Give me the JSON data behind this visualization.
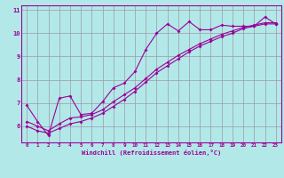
{
  "bg_color": "#b3e8e8",
  "line_color": "#990099",
  "grid_color": "#9999aa",
  "xlim": [
    -0.5,
    23.5
  ],
  "ylim": [
    5.3,
    11.2
  ],
  "xticks": [
    0,
    1,
    2,
    3,
    4,
    5,
    6,
    7,
    8,
    9,
    10,
    11,
    12,
    13,
    14,
    15,
    16,
    17,
    18,
    19,
    20,
    21,
    22,
    23
  ],
  "yticks": [
    6,
    7,
    8,
    9,
    10,
    11
  ],
  "xlabel": "Windchill (Refroidissement éolien,°C)",
  "line1_x": [
    0,
    1,
    2,
    3,
    4,
    5,
    6,
    7,
    8,
    9,
    10,
    11,
    12,
    13,
    14,
    15,
    16,
    17,
    18,
    19,
    20,
    21,
    22,
    23
  ],
  "line1_y": [
    6.9,
    6.2,
    5.6,
    7.2,
    7.3,
    6.5,
    6.55,
    7.05,
    7.65,
    7.85,
    8.35,
    9.3,
    10.0,
    10.4,
    10.1,
    10.5,
    10.15,
    10.15,
    10.35,
    10.3,
    10.3,
    10.3,
    10.7,
    10.4
  ],
  "line2_x": [
    0,
    1,
    2,
    3,
    4,
    5,
    6,
    7,
    8,
    9,
    10,
    11,
    12,
    13,
    14,
    15,
    16,
    17,
    18,
    19,
    20,
    21,
    22,
    23
  ],
  "line2_y": [
    6.2,
    6.0,
    5.8,
    6.1,
    6.35,
    6.4,
    6.5,
    6.7,
    7.05,
    7.35,
    7.65,
    8.05,
    8.45,
    8.75,
    9.05,
    9.3,
    9.55,
    9.75,
    9.95,
    10.1,
    10.25,
    10.35,
    10.45,
    10.45
  ],
  "line3_x": [
    0,
    1,
    2,
    3,
    4,
    5,
    6,
    7,
    8,
    9,
    10,
    11,
    12,
    13,
    14,
    15,
    16,
    17,
    18,
    19,
    20,
    21,
    22,
    23
  ],
  "line3_y": [
    6.0,
    5.8,
    5.7,
    5.9,
    6.1,
    6.2,
    6.35,
    6.55,
    6.85,
    7.15,
    7.5,
    7.9,
    8.3,
    8.6,
    8.9,
    9.2,
    9.45,
    9.65,
    9.85,
    10.0,
    10.2,
    10.3,
    10.4,
    10.4
  ]
}
